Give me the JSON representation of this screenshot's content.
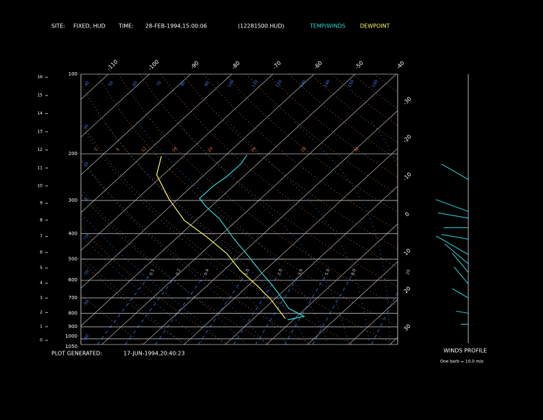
{
  "chart_data": {
    "type": "skewt",
    "site_label": "SITE:",
    "site": "FIXED, HUD",
    "time_label": "TIME:",
    "time": "28-FEB-1994,15:00:06",
    "file": "(12281500.HUD)",
    "generated_label": "PLOT GENERATED:",
    "generated": "17-JUN-1994,20:40:23",
    "winds_title": "WINDS PROFILE",
    "winds_note": "One barb = 10.0 m/s",
    "y_scale": "log",
    "ylim": [
      1050,
      100
    ],
    "yticks": [
      100,
      200,
      300,
      400,
      500,
      600,
      700,
      800,
      900,
      1000,
      1050
    ],
    "isotherm_ticks": [
      -110,
      -100,
      -90,
      -80,
      -70,
      -60,
      -50,
      -40,
      -30,
      -20,
      -10,
      0,
      10,
      20,
      30
    ],
    "altitude_ticks": [
      0,
      1,
      2,
      3,
      4,
      5,
      6,
      7,
      8,
      9,
      10,
      11,
      12,
      13,
      14,
      15,
      16
    ],
    "mixing_ratio_ticks": [
      0.1,
      0.2,
      0.4,
      {
        "value": 1,
        "label": "1.0"
      },
      {
        "value": 2,
        "label": "2.0"
      },
      {
        "value": 3,
        "label": "3.0"
      },
      {
        "value": 5,
        "label": "5.0"
      },
      {
        "value": 8,
        "label": "8.0"
      },
      20
    ],
    "top_labels": [
      "40",
      "50",
      "60",
      "70",
      "80",
      "90",
      "100",
      "110",
      "120",
      "130",
      "140",
      "150",
      "160"
    ],
    "left_labels": [
      "30",
      "10",
      "0",
      "-10",
      "-20",
      "-30",
      "-40"
    ],
    "theta_labels": [
      "5",
      "8",
      "12",
      "16",
      "20",
      "24",
      "28",
      "32"
    ],
    "series": [
      {
        "name": "TEMP/WINDS",
        "color": "#33dddd",
        "pressure": [
          202,
          219,
          244,
          265,
          295,
          317,
          353,
          417,
          481,
          552,
          622,
          700,
          766,
          822,
          847
        ],
        "values": [
          -54.9,
          -54.0,
          -54.1,
          -54.9,
          -54.9,
          -51.1,
          -44.5,
          -36.1,
          -28.4,
          -21.2,
          -14.7,
          -8.6,
          -4.2,
          1.7,
          -1.4
        ]
      },
      {
        "name": "DEWPOINT",
        "color": "#ffff66",
        "pressure": [
          204,
          240,
          295,
          357,
          410,
          476,
          552,
          633,
          713,
          775,
          837
        ],
        "values": [
          -75.4,
          -71.6,
          -62.4,
          -52.8,
          -43.3,
          -33.7,
          -25.9,
          -17.5,
          -10.6,
          -6.3,
          -2.3
        ]
      }
    ],
    "winds": {
      "pressure": [
        250,
        330,
        350,
        380,
        420,
        480,
        520,
        560,
        620,
        700,
        800,
        880
      ],
      "direction": [
        300,
        290,
        280,
        270,
        280,
        300,
        310,
        320,
        320,
        300,
        280,
        270
      ],
      "speed": [
        25,
        28,
        25,
        20,
        22,
        30,
        25,
        20,
        18,
        15,
        10,
        6
      ]
    }
  }
}
